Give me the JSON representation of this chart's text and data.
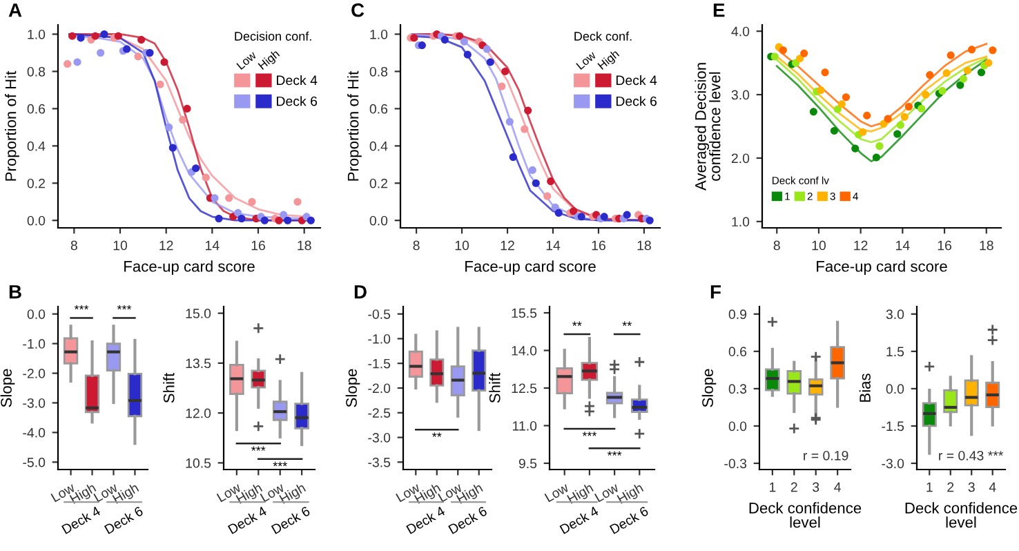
{
  "chart_data": [
    {
      "type": "scatter",
      "title": "A",
      "xlabel": "Face-up card score",
      "ylabel": "Proportion of Hit",
      "xlim": [
        7.3,
        18.7
      ],
      "xticks": [
        8,
        10,
        12,
        14,
        16,
        18
      ],
      "ylim": [
        -0.04,
        1.05
      ],
      "yticks": [
        {
          "value": 0,
          "label": "0.0"
        },
        0.2,
        0.4,
        0.6,
        0.8,
        {
          "value": 1,
          "label": "1.0"
        }
      ],
      "grid": false,
      "legend": "top right",
      "legend_title": "Decision conf.",
      "annotations": [
        "Low",
        "High"
      ],
      "marker": "circle",
      "series": [
        {
          "color": "#f4959a",
          "x": [
            7.71,
            8.74,
            9.74,
            10.78,
            11.74,
            12.72,
            13.73,
            14.73,
            15.73,
            16.73,
            17.71
          ],
          "values": [
            0.84,
            0.97,
            0.98,
            0.88,
            0.73,
            0.54,
            0.23,
            0.12,
            0.1,
            0.01,
            0.1
          ]
        },
        {
          "name": "Deck 4",
          "color": "#cc1a33",
          "x": [
            7.92,
            8.92,
            9.92,
            10.92,
            11.92,
            12.91,
            13.91,
            14.91,
            15.91,
            16.9,
            17.9
          ],
          "values": [
            0.99,
            0.99,
            0.99,
            0.97,
            0.85,
            0.6,
            0.12,
            0.02,
            0.01,
            0.0,
            0.0
          ]
        },
        {
          "color": "#9999f2",
          "x": [
            8.14,
            9.15,
            10.13,
            11.13,
            12.12,
            13.11,
            14.11,
            15.12,
            16.12,
            17.1,
            18.1
          ],
          "values": [
            0.85,
            0.9,
            0.91,
            0.9,
            0.5,
            0.26,
            0.12,
            0.04,
            0.02,
            0.03,
            0.02
          ]
        },
        {
          "name": "Deck 6",
          "color": "#2b2bcc",
          "x": [
            8.29,
            9.31,
            10.29,
            11.29,
            12.29,
            13.29,
            14.29,
            15.28,
            16.28,
            17.28,
            18.29
          ],
          "values": [
            0.98,
            1.0,
            0.92,
            0.9,
            0.39,
            0.28,
            0.01,
            0.01,
            0.0,
            0.0,
            0.0
          ]
        },
        {
          "type": "line",
          "marker": "none",
          "color": "#f4959a",
          "x": [
            7.8,
            9,
            10,
            11,
            12,
            12.5,
            13,
            13.5,
            14,
            15,
            16,
            17,
            18.1
          ],
          "values": [
            1.0,
            0.99,
            0.98,
            0.92,
            0.75,
            0.6,
            0.45,
            0.33,
            0.24,
            0.12,
            0.06,
            0.03,
            0.02
          ]
        },
        {
          "type": "line",
          "marker": "none",
          "color": "#cc1a33",
          "x": [
            7.8,
            9,
            10,
            11,
            11.5,
            12,
            12.5,
            13,
            13.5,
            14,
            14.5,
            15,
            16,
            18.1
          ],
          "values": [
            1.0,
            1.0,
            1.0,
            0.98,
            0.95,
            0.85,
            0.7,
            0.5,
            0.28,
            0.12,
            0.05,
            0.02,
            0.0,
            0.0
          ]
        },
        {
          "type": "line",
          "marker": "none",
          "color": "#9999f2",
          "x": [
            7.8,
            9,
            10,
            11,
            11.5,
            12,
            12.5,
            13,
            14,
            15,
            16,
            18.1
          ],
          "values": [
            0.99,
            0.98,
            0.96,
            0.87,
            0.75,
            0.55,
            0.38,
            0.25,
            0.1,
            0.04,
            0.02,
            0.01
          ]
        },
        {
          "type": "line",
          "marker": "none",
          "color": "#2b2bcc",
          "x": [
            7.8,
            9,
            10,
            11,
            11.5,
            12,
            12.5,
            13,
            13.5,
            14,
            15,
            18.1
          ],
          "values": [
            1.0,
            0.99,
            0.98,
            0.9,
            0.75,
            0.5,
            0.27,
            0.12,
            0.05,
            0.02,
            0.0,
            0.0
          ]
        }
      ]
    },
    {
      "type": "scatter",
      "title": "C",
      "xlabel": "Face-up card score",
      "ylabel": "Proportion of Hit",
      "xlim": [
        7.3,
        18.7
      ],
      "xticks": [
        8,
        10,
        12,
        14,
        16,
        18
      ],
      "ylim": [
        -0.04,
        1.05
      ],
      "yticks": [
        {
          "value": 0,
          "label": "0.0"
        },
        0.2,
        0.4,
        0.6,
        0.8,
        {
          "value": 1,
          "label": "1.0"
        }
      ],
      "grid": false,
      "legend": "top right",
      "legend_title": "Deck conf.",
      "annotations": [
        "Low",
        "High"
      ],
      "marker": "circle",
      "series": [
        {
          "color": "#f4959a",
          "x": [
            7.75,
            8.75,
            9.75,
            10.75,
            11.75,
            12.75,
            13.75,
            14.75,
            15.75,
            16.75,
            17.75
          ],
          "values": [
            0.98,
            0.99,
            0.99,
            0.96,
            0.72,
            0.49,
            0.13,
            0.04,
            0.02,
            0.01,
            0.03
          ]
        },
        {
          "name": "Deck 4",
          "color": "#cc1a33",
          "x": [
            7.9,
            8.9,
            9.9,
            10.9,
            11.9,
            12.9,
            13.9,
            14.9,
            15.9,
            16.9,
            17.9
          ],
          "values": [
            0.98,
            1.0,
            0.99,
            0.94,
            0.8,
            0.59,
            0.21,
            0.05,
            0.03,
            0.01,
            0.01
          ]
        },
        {
          "color": "#9999f2",
          "x": [
            8.1,
            9.1,
            10.1,
            11.1,
            12.1,
            13.1,
            14.1,
            15.1,
            16.1,
            17.1,
            18.1
          ],
          "values": [
            0.94,
            0.99,
            0.96,
            0.92,
            0.53,
            0.27,
            0.07,
            0.02,
            0.01,
            0.01,
            0.01
          ]
        },
        {
          "name": "Deck 6",
          "color": "#2b2bcc",
          "x": [
            8.25,
            9.25,
            10.25,
            11.25,
            12.25,
            13.25,
            14.25,
            15.25,
            16.25,
            17.25,
            18.25
          ],
          "values": [
            0.94,
            0.97,
            0.89,
            0.85,
            0.34,
            0.2,
            0.04,
            0.02,
            0.02,
            0.03,
            0.0
          ]
        },
        {
          "type": "line",
          "marker": "none",
          "color": "#f4959a",
          "x": [
            7.8,
            9,
            10,
            11,
            12,
            12.5,
            13,
            13.5,
            14,
            15,
            16,
            18.1
          ],
          "values": [
            1.0,
            1.0,
            0.99,
            0.93,
            0.75,
            0.6,
            0.44,
            0.3,
            0.17,
            0.05,
            0.01,
            0.0
          ]
        },
        {
          "type": "line",
          "marker": "none",
          "color": "#cc1a33",
          "x": [
            7.8,
            9,
            10,
            11,
            12,
            12.5,
            13,
            13.5,
            14,
            14.5,
            15,
            16,
            18.1
          ],
          "values": [
            1.0,
            1.0,
            0.99,
            0.95,
            0.82,
            0.7,
            0.53,
            0.37,
            0.22,
            0.12,
            0.06,
            0.01,
            0.0
          ]
        },
        {
          "type": "line",
          "marker": "none",
          "color": "#9999f2",
          "x": [
            7.8,
            9,
            10,
            11,
            11.5,
            12,
            12.5,
            13,
            14,
            15,
            16,
            18.1
          ],
          "values": [
            1.0,
            0.99,
            0.97,
            0.87,
            0.76,
            0.58,
            0.4,
            0.24,
            0.08,
            0.02,
            0.0,
            0.0
          ]
        },
        {
          "type": "line",
          "marker": "none",
          "color": "#2b2bcc",
          "x": [
            7.8,
            9,
            10,
            11,
            11.5,
            12,
            12.5,
            13,
            14,
            15,
            16,
            18.1
          ],
          "values": [
            0.99,
            0.98,
            0.93,
            0.75,
            0.6,
            0.45,
            0.3,
            0.16,
            0.05,
            0.01,
            0.0,
            0.0
          ]
        }
      ]
    },
    {
      "type": "scatter",
      "title": "E",
      "xlabel": "Face-up card score",
      "ylabel": "Averaged Decision confidence level",
      "xlim": [
        7.3,
        18.7
      ],
      "xticks": [
        8,
        10,
        12,
        14,
        16,
        18
      ],
      "ylim": [
        0.9,
        4.1
      ],
      "yticks": [
        {
          "value": 1,
          "label": "1.0"
        },
        {
          "value": 2,
          "label": "2.0"
        },
        {
          "value": 3,
          "label": "3.0"
        },
        {
          "value": 4,
          "label": "4.0"
        }
      ],
      "grid": false,
      "legend": "bottom left",
      "legend_title": "Deck conf lv",
      "marker": "circle",
      "series": [
        {
          "name": "1",
          "color": "#0a8a0a",
          "x": [
            7.72,
            8.72,
            9.75,
            10.74,
            11.74,
            12.75,
            13.75,
            14.74,
            15.75,
            16.75,
            17.76
          ],
          "values": [
            3.6,
            3.48,
            2.73,
            2.43,
            2.15,
            2.01,
            2.38,
            2.83,
            3.02,
            3.15,
            3.35
          ]
        },
        {
          "name": "2",
          "color": "#99e619",
          "x": [
            7.9,
            8.9,
            9.9,
            10.9,
            11.9,
            12.9,
            13.9,
            14.9,
            15.9,
            16.9,
            17.9
          ],
          "values": [
            3.6,
            3.5,
            3.05,
            2.77,
            2.37,
            2.19,
            2.52,
            2.78,
            3.06,
            3.25,
            3.46
          ]
        },
        {
          "name": "3",
          "color": "#ffb300",
          "x": [
            8.1,
            9.1,
            10.1,
            11.1,
            12.1,
            13.1,
            14.1,
            15.1,
            16.1,
            17.1,
            18.1
          ],
          "values": [
            3.75,
            3.57,
            3.07,
            2.85,
            2.41,
            2.54,
            2.65,
            3.0,
            3.34,
            3.38,
            3.5
          ]
        },
        {
          "name": "4",
          "color": "#ff6600",
          "x": [
            8.3,
            9.3,
            10.3,
            11.3,
            12.3,
            13.3,
            14.3,
            15.3,
            16.3,
            17.3,
            18.3
          ],
          "values": [
            3.7,
            3.65,
            3.35,
            2.96,
            2.67,
            2.62,
            2.81,
            3.31,
            3.62,
            3.71,
            3.7
          ]
        },
        {
          "type": "line",
          "marker": "none",
          "color": "#0a8a0a",
          "x": [
            8,
            9,
            10,
            11,
            12,
            12.5,
            13,
            14,
            15,
            16,
            17,
            18
          ],
          "values": [
            3.45,
            3.15,
            2.8,
            2.42,
            2.08,
            1.95,
            2.02,
            2.35,
            2.7,
            3.05,
            3.32,
            3.55
          ]
        },
        {
          "type": "line",
          "marker": "none",
          "color": "#99e619",
          "x": [
            8,
            9,
            10,
            11,
            12,
            12.5,
            13,
            14,
            15,
            16,
            17,
            18
          ],
          "values": [
            3.55,
            3.25,
            2.9,
            2.58,
            2.3,
            2.25,
            2.3,
            2.6,
            2.92,
            3.2,
            3.42,
            3.58
          ]
        },
        {
          "type": "line",
          "marker": "none",
          "color": "#ffb300",
          "x": [
            8,
            9,
            10,
            11,
            12,
            12.5,
            13,
            14,
            15,
            16,
            17,
            18
          ],
          "values": [
            3.6,
            3.33,
            3.0,
            2.7,
            2.45,
            2.42,
            2.48,
            2.72,
            3.05,
            3.3,
            3.5,
            3.6
          ]
        },
        {
          "type": "line",
          "marker": "none",
          "color": "#ff6600",
          "x": [
            8,
            9,
            10,
            11,
            12,
            12.5,
            13,
            14,
            15,
            16,
            17,
            18
          ],
          "values": [
            3.72,
            3.45,
            3.15,
            2.85,
            2.58,
            2.5,
            2.55,
            2.82,
            3.15,
            3.45,
            3.68,
            3.8
          ]
        }
      ]
    },
    {
      "type": "box",
      "title": "B",
      "ylabel": "Slope",
      "categories": [
        "Low",
        "High",
        "Low",
        "High"
      ],
      "colors": [
        "#f4959a",
        "#cc1a33",
        "#9999f2",
        "#2b2bcc"
      ],
      "ylim": [
        -5.25,
        0.25
      ],
      "yticks": [
        {
          "value": -5,
          "label": "-5.0"
        },
        {
          "value": -4,
          "label": "-4.0"
        },
        {
          "value": -3,
          "label": "-3.0"
        },
        {
          "value": -2,
          "label": "-2.0"
        },
        {
          "value": -1,
          "label": "-1.0"
        },
        {
          "value": 0,
          "label": "0.0"
        }
      ],
      "grid": false,
      "annotations": [
        "***",
        "***",
        "Deck 4",
        "Deck 6"
      ],
      "boxes": [
        {
          "low": -2.27,
          "q1": -1.67,
          "median": -1.28,
          "q3": -0.82,
          "high": -0.41
        },
        {
          "low": -3.65,
          "q1": -3.31,
          "median": -3.17,
          "q3": -2.08,
          "high": -0.94
        },
        {
          "low": -2.99,
          "q1": -1.91,
          "median": -1.28,
          "q3": -1.0,
          "high": -0.41
        },
        {
          "low": -4.37,
          "q1": -3.45,
          "median": -2.92,
          "q3": -2.02,
          "high": -0.89
        }
      ]
    },
    {
      "type": "box",
      "ylabel": "Shift",
      "categories": [
        "Low",
        "High",
        "Low",
        "High"
      ],
      "colors": [
        "#f4959a",
        "#cc1a33",
        "#9999f2",
        "#2b2bcc"
      ],
      "ylim": [
        10.3,
        15.2
      ],
      "yticks": [
        {
          "value": 10.5,
          "label": "10.5"
        },
        {
          "value": 12,
          "label": "12.0"
        },
        {
          "value": 13.5,
          "label": "13.5"
        },
        {
          "value": 15,
          "label": "15.0"
        }
      ],
      "grid": false,
      "annotations": [
        "***",
        "***",
        "Deck 4",
        "Deck 6"
      ],
      "boxes": [
        {
          "low": 11.5,
          "q1": 12.57,
          "median": 13.03,
          "q3": 13.45,
          "high": 14.13
        },
        {
          "low": 12.17,
          "q1": 12.77,
          "median": 12.99,
          "q3": 13.27,
          "high": 13.6,
          "outliers": [
            14.55,
            11.6
          ]
        },
        {
          "low": 11.28,
          "q1": 11.79,
          "median": 12.04,
          "q3": 12.34,
          "high": 12.95,
          "outliers": [
            13.62
          ]
        },
        {
          "low": 11.05,
          "q1": 11.54,
          "median": 11.86,
          "q3": 12.28,
          "high": 13.19
        }
      ]
    },
    {
      "type": "box",
      "title": "D",
      "ylabel": "Slope",
      "categories": [
        "Low",
        "High",
        "Low",
        "High"
      ],
      "colors": [
        "#f4959a",
        "#cc1a33",
        "#9999f2",
        "#2b2bcc"
      ],
      "ylim": [
        -3.65,
        -0.35
      ],
      "yticks": [
        -3.5,
        {
          "value": -3,
          "label": "-3.0"
        },
        -2.5,
        {
          "value": -2,
          "label": "-2.0"
        },
        -1.5,
        {
          "value": -1,
          "label": "-1.0"
        },
        -0.5
      ],
      "grid": false,
      "annotations": [
        "**",
        "Deck 4",
        "Deck 6"
      ],
      "boxes": [
        {
          "low": -2.0,
          "q1": -1.77,
          "median": -1.56,
          "q3": -1.26,
          "high": -0.93
        },
        {
          "low": -2.27,
          "q1": -1.95,
          "median": -1.71,
          "q3": -1.42,
          "high": -0.86
        },
        {
          "low": -2.57,
          "q1": -2.15,
          "median": -1.84,
          "q3": -1.56,
          "high": -0.79
        },
        {
          "low": -2.84,
          "q1": -2.05,
          "median": -1.7,
          "q3": -1.24,
          "high": -0.79
        }
      ]
    },
    {
      "type": "box",
      "ylabel": "Shift",
      "categories": [
        "Low",
        "High",
        "Low",
        "High"
      ],
      "colors": [
        "#f4959a",
        "#cc1a33",
        "#9999f2",
        "#2b2bcc"
      ],
      "ylim": [
        9.25,
        15.75
      ],
      "yticks": [
        9.5,
        {
          "value": 11,
          "label": "11.0"
        },
        12.5,
        {
          "value": 14,
          "label": "14.0"
        },
        15.5
      ],
      "grid": false,
      "annotations": [
        "**",
        "**",
        "***",
        "***",
        "Deck 4",
        "Deck 6"
      ],
      "boxes": [
        {
          "low": 11.71,
          "q1": 12.29,
          "median": 12.96,
          "q3": 13.29,
          "high": 14.01
        },
        {
          "low": 12.13,
          "q1": 12.83,
          "median": 13.18,
          "q3": 13.5,
          "high": 14.48,
          "outliers": [
            11.78,
            11.57
          ]
        },
        {
          "low": 11.36,
          "q1": 11.89,
          "median": 12.13,
          "q3": 12.31,
          "high": 12.92,
          "outliers": [
            13.43,
            13.25
          ]
        },
        {
          "low": 11.29,
          "q1": 11.55,
          "median": 11.73,
          "q3": 12.04,
          "high": 12.57,
          "outliers": [
            13.54,
            10.68
          ]
        }
      ]
    },
    {
      "type": "box",
      "title": "F",
      "ylabel": "Slope",
      "xlabel": "Deck confidence level",
      "categories": [
        "1",
        "2",
        "3",
        "4"
      ],
      "colors": [
        "#0a8a0a",
        "#99e619",
        "#ffb300",
        "#ff6600"
      ],
      "ylim": [
        -0.35,
        0.96
      ],
      "yticks": [
        -0.3,
        {
          "value": 0,
          "label": "0.0"
        },
        0.3,
        0.6,
        0.9
      ],
      "grid": false,
      "annotations": [
        "r = 0.19"
      ],
      "boxes": [
        {
          "low": 0.246,
          "q1": 0.288,
          "median": 0.382,
          "q3": 0.456,
          "high": 0.617,
          "outliers": [
            0.837
          ]
        },
        {
          "low": 0.116,
          "q1": 0.26,
          "median": 0.358,
          "q3": 0.442,
          "high": 0.512,
          "outliers": [
            -0.02
          ]
        },
        {
          "low": 0.088,
          "q1": 0.253,
          "median": 0.323,
          "q3": 0.375,
          "high": 0.536,
          "outliers": [
            0.557,
            0.065,
            0.05
          ]
        },
        {
          "low": 0.158,
          "q1": 0.382,
          "median": 0.508,
          "q3": 0.634,
          "high": 0.834
        }
      ]
    },
    {
      "type": "box",
      "ylabel": "Bias",
      "xlabel": "Deck confidence level",
      "categories": [
        "1",
        "2",
        "3",
        "4"
      ],
      "colors": [
        "#0a8a0a",
        "#99e619",
        "#ffb300",
        "#ff6600"
      ],
      "ylim": [
        -3.25,
        3.3
      ],
      "yticks": [
        {
          "value": -3,
          "label": "-3.0"
        },
        -1.5,
        {
          "value": 0,
          "label": "0.0"
        },
        1.5,
        {
          "value": 3,
          "label": "3.0"
        }
      ],
      "grid": false,
      "annotations": [
        "r = 0.43 ***"
      ],
      "boxes": [
        {
          "low": -2.6,
          "q1": -1.5,
          "median": -1.0,
          "q3": -0.58,
          "high": -0.06,
          "outliers": [
            0.89
          ]
        },
        {
          "low": -1.46,
          "q1": -0.94,
          "median": -0.75,
          "q3": -0.06,
          "high": 0.46
        },
        {
          "low": -1.84,
          "q1": -0.67,
          "median": -0.35,
          "q3": 0.33,
          "high": 1.29
        },
        {
          "low": -1.46,
          "q1": -0.74,
          "median": -0.25,
          "q3": 0.24,
          "high": 1.05,
          "outliers": [
            2.37,
            1.95
          ]
        }
      ]
    }
  ]
}
